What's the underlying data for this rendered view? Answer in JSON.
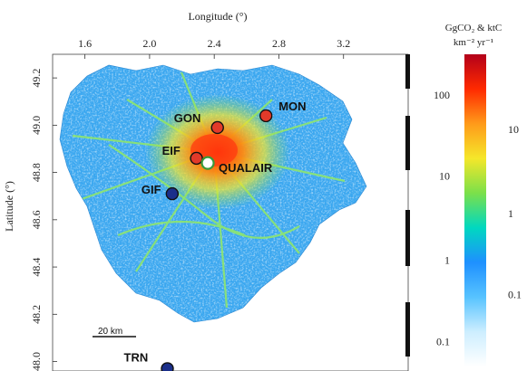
{
  "map": {
    "x_axis_title": "Longitude (°)",
    "y_axis_title": "Latitude (°)",
    "x_ticks": [
      "1.6",
      "2.0",
      "2.4",
      "2.8",
      "3.2"
    ],
    "y_ticks": [
      "49.2",
      "49.0",
      "48.8",
      "48.6",
      "48.4",
      "48.2",
      "48.0"
    ],
    "x_range": [
      1.4,
      3.6
    ],
    "y_range": [
      47.96,
      49.3
    ],
    "scale_bar_label": "20 km",
    "sites": [
      {
        "name": "GON",
        "lon": 2.42,
        "lat": 48.99,
        "marker": "red"
      },
      {
        "name": "MON",
        "lon": 2.72,
        "lat": 49.04,
        "marker": "red"
      },
      {
        "name": "EIF",
        "lon": 2.29,
        "lat": 48.86,
        "marker": "red"
      },
      {
        "name": "QUALAIR",
        "lon": 2.36,
        "lat": 48.84,
        "marker": "green-outline"
      },
      {
        "name": "GIF",
        "lon": 2.14,
        "lat": 48.71,
        "marker": "navy"
      },
      {
        "name": "TRN",
        "lon": 2.11,
        "lat": 47.97,
        "marker": "navy"
      }
    ]
  },
  "colorbar": {
    "title_line1": "GgCO₂ & ktC",
    "title_line2": "km⁻² yr⁻¹",
    "left_ticks": [
      "100",
      "10",
      "1",
      "0.1"
    ],
    "right_ticks": [
      "10",
      "1",
      "0.1"
    ],
    "colors": [
      "#ffffff",
      "#cdeeff",
      "#57c3ff",
      "#1e90ff",
      "#00d8c0",
      "#7be04a",
      "#f5e72a",
      "#ff9a1a",
      "#ff2a00",
      "#b3001a"
    ]
  },
  "colors": {
    "background_low": "#3aa7f0",
    "road": "#8ee66e",
    "hot": "#ff3a10",
    "marker_red": "#e23a2a",
    "marker_navy": "#1b2f8a",
    "marker_green": "#3a9a3a"
  }
}
